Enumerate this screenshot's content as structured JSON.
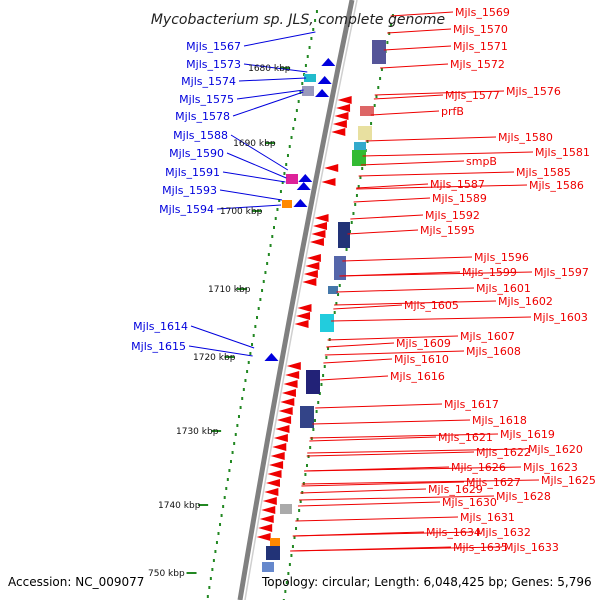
{
  "title": "Mycobacterium sp. JLS, complete genome",
  "footer": {
    "accession": "Accession: NC_009077",
    "topology": "Topology: circular; Length: 6,048,425 bp; Genes: 5,796"
  },
  "colors": {
    "forward": "#0000dd",
    "reverse": "#ee0000",
    "backbone": "#888888",
    "tick": "#228822"
  },
  "kbp_labels": [
    "1680 kbp",
    "1690 kbp",
    "1700 kbp",
    "1710 kbp",
    "1720 kbp",
    "1730 kbp",
    "1740 kbp",
    "750 kbp"
  ],
  "left_labels": [
    "Mjls_1567",
    "Mjls_1573",
    "Mjls_1574",
    "Mjls_1575",
    "Mjls_1578",
    "Mjls_1588",
    "Mjls_1590",
    "Mjls_1591",
    "Mjls_1593",
    "Mjls_1594",
    "Mjls_1614",
    "Mjls_1615"
  ],
  "right_labels": [
    "Mjls_1569",
    "Mjls_1570",
    "Mjls_1571",
    "Mjls_1572",
    "Mjls_1577",
    "Mjls_1576",
    "prfB",
    "Mjls_1580",
    "Mjls_1581",
    "smpB",
    "Mjls_1585",
    "Mjls_1586",
    "Mjls_1587",
    "Mjls_1589",
    "Mjls_1592",
    "Mjls_1595",
    "Mjls_1596",
    "Mjls_1599",
    "Mjls_1597",
    "Mjls_1601",
    "Mjls_1602",
    "Mjls_1605",
    "Mjls_1603",
    "Mjls_1607",
    "Mjls_1609",
    "Mjls_1608",
    "Mjls_1610",
    "Mjls_1616",
    "Mjls_1617",
    "Mjls_1618",
    "Mjls_1619",
    "Mjls_1621",
    "Mjls_1620",
    "Mjls_1622",
    "Mjls_1623",
    "Mjls_1626",
    "Mjls_1625",
    "Mjls_1627",
    "Mjls_1629",
    "Mjls_1628",
    "Mjls_1630",
    "Mjls_1631",
    "Mjls_1632",
    "Mjls_1634",
    "Mjls_1635",
    "Mjls_1633"
  ]
}
